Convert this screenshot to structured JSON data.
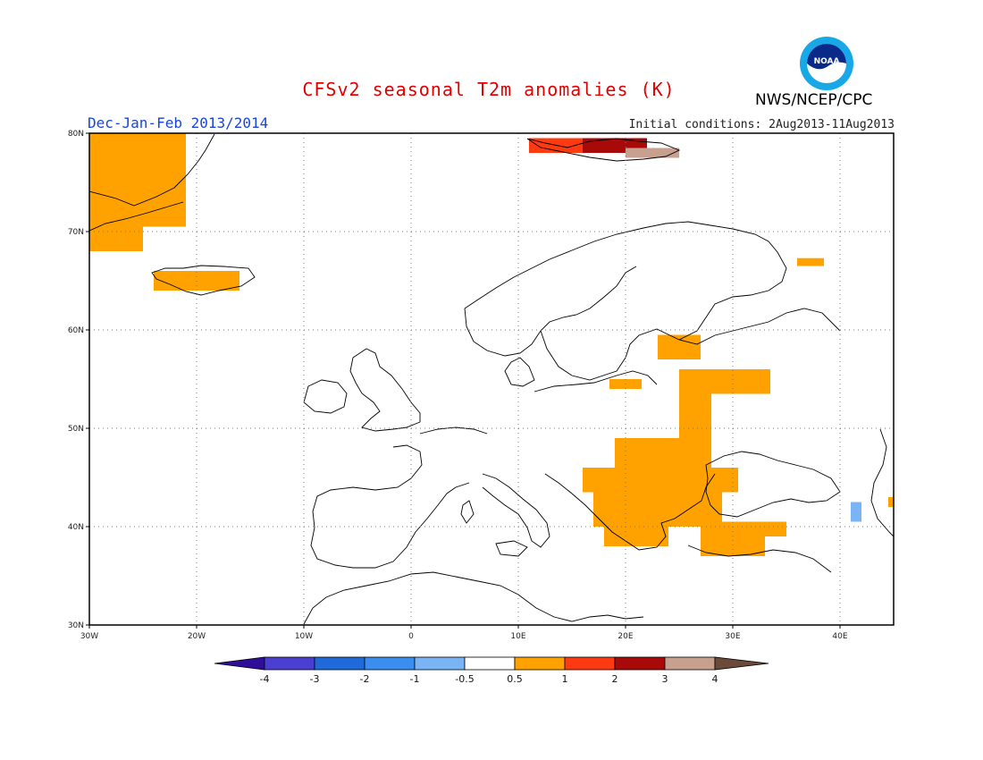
{
  "header": {
    "title": "CFSv2 seasonal T2m anomalies (K)",
    "season": "Dec-Jan-Feb 2013/2014",
    "initial_conditions": "Initial conditions: 2Aug2013-11Aug2013",
    "agency": "NWS/NCEP/CPC",
    "logo_text": "NOAA"
  },
  "map": {
    "lon_range": [
      -30,
      45
    ],
    "lat_range": [
      30,
      80
    ],
    "grid": "dotted",
    "lat_labels": [
      "80N",
      "70N",
      "60N",
      "50N",
      "40N",
      "30N"
    ],
    "lon_labels": [
      "30W",
      "20W",
      "10W",
      "0",
      "10E",
      "20E",
      "30E",
      "40E"
    ],
    "anomaly_cells": [
      {
        "lon0": -30,
        "lon1": -21,
        "lat0": 70.5,
        "lat1": 80,
        "bin": "0.5 to 1"
      },
      {
        "lon0": -30,
        "lon1": -25,
        "lat0": 68,
        "lat1": 70.5,
        "bin": "0.5 to 1"
      },
      {
        "lon0": -24,
        "lon1": -16,
        "lat0": 64,
        "lat1": 66,
        "bin": "0.5 to 1"
      },
      {
        "lon0": 11,
        "lon1": 20,
        "lat0": 78,
        "lat1": 79.5,
        "bin": "1 to 2"
      },
      {
        "lon0": 16,
        "lon1": 22,
        "lat0": 78,
        "lat1": 79.5,
        "bin": "2 to 3"
      },
      {
        "lon0": 20,
        "lon1": 25,
        "lat0": 77.5,
        "lat1": 78.5,
        "bin": "3 to 4"
      },
      {
        "lon0": 36,
        "lon1": 38.5,
        "lat0": 66.5,
        "lat1": 67.3,
        "bin": "0.5 to 1"
      },
      {
        "lon0": 23,
        "lon1": 27,
        "lat0": 57,
        "lat1": 59.5,
        "bin": "0.5 to 1"
      },
      {
        "lon0": 25,
        "lon1": 33.5,
        "lat0": 53.5,
        "lat1": 56,
        "bin": "0.5 to 1"
      },
      {
        "lon0": 18.5,
        "lon1": 21.5,
        "lat0": 54,
        "lat1": 55,
        "bin": "0.5 to 1"
      },
      {
        "lon0": 25,
        "lon1": 28,
        "lat0": 49,
        "lat1": 54,
        "bin": "0.5 to 1"
      },
      {
        "lon0": 19,
        "lon1": 28,
        "lat0": 46,
        "lat1": 49,
        "bin": "0.5 to 1"
      },
      {
        "lon0": 16,
        "lon1": 30.5,
        "lat0": 43.5,
        "lat1": 46,
        "bin": "0.5 to 1"
      },
      {
        "lon0": 17,
        "lon1": 29,
        "lat0": 40,
        "lat1": 43.5,
        "bin": "0.5 to 1"
      },
      {
        "lon0": 18,
        "lon1": 24,
        "lat0": 38,
        "lat1": 40,
        "bin": "0.5 to 1"
      },
      {
        "lon0": 27,
        "lon1": 35,
        "lat0": 39,
        "lat1": 40.5,
        "bin": "0.5 to 1"
      },
      {
        "lon0": 27,
        "lon1": 33,
        "lat0": 37,
        "lat1": 39,
        "bin": "0.5 to 1"
      },
      {
        "lon0": 41,
        "lon1": 42,
        "lat0": 40.5,
        "lat1": 42.5,
        "bin": "-1 to -0.5"
      },
      {
        "lon0": 44.5,
        "lon1": 45,
        "lat0": 42,
        "lat1": 43,
        "bin": "0.5 to 1"
      }
    ]
  },
  "colorbar": {
    "labels": [
      "-4",
      "-3",
      "-2",
      "-1",
      "-0.5",
      "0.5",
      "1",
      "2",
      "3",
      "4"
    ],
    "colors": [
      "#2f0f9a",
      "#4a3fd0",
      "#1f6ad8",
      "#3a8ef0",
      "#7ab4f5",
      "#ffffff",
      "#ffa200",
      "#ff3a10",
      "#a80a0a",
      "#c8a090",
      "#6b4a3a"
    ],
    "color_names": [
      "< -4",
      "-4 to -3",
      "-3 to -2",
      "-2 to -1",
      "-1 to -0.5",
      "-0.5 to 0.5",
      "0.5 to 1",
      "1 to 2",
      "2 to 3",
      "3 to 4",
      "> 4"
    ]
  }
}
